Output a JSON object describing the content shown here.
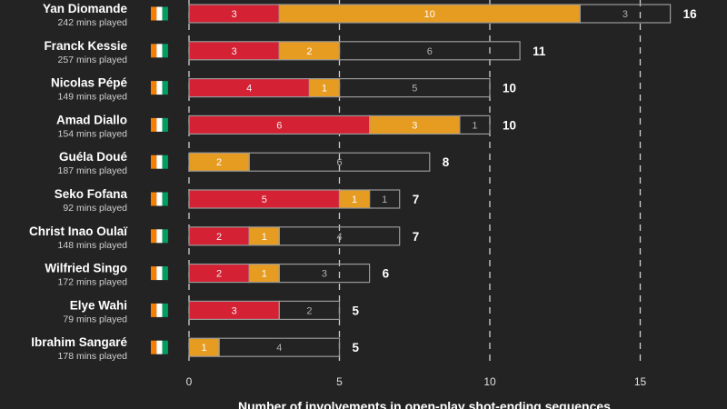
{
  "chart_data": {
    "type": "bar",
    "orientation": "horizontal",
    "stacked": true,
    "xlabel": "Number of involvements in open-play shot-ending sequences",
    "xlim": [
      0,
      16.5
    ],
    "xticks": [
      0,
      5,
      10,
      15
    ],
    "grid": "vertical dashed",
    "colors": {
      "red": "#d42133",
      "orange": "#e69b21",
      "outline": "#9a9a9a",
      "background": "#232323"
    },
    "players": [
      {
        "name": "Yan Diomande",
        "minutes": "242 mins played",
        "red": 3,
        "orange": 10,
        "outline": 3,
        "total": 16
      },
      {
        "name": "Franck Kessie",
        "minutes": "257 mins played",
        "red": 3,
        "orange": 2,
        "outline": 6,
        "total": 11
      },
      {
        "name": "Nicolas Pépé",
        "minutes": "149 mins played",
        "red": 4,
        "orange": 1,
        "outline": 5,
        "total": 10
      },
      {
        "name": "Amad Diallo",
        "minutes": "154 mins played",
        "red": 6,
        "orange": 3,
        "outline": 1,
        "total": 10
      },
      {
        "name": "Guéla Doué",
        "minutes": "187 mins played",
        "red": 0,
        "orange": 2,
        "outline": 6,
        "total": 8
      },
      {
        "name": "Seko Fofana",
        "minutes": "92 mins played",
        "red": 5,
        "orange": 1,
        "outline": 1,
        "total": 7
      },
      {
        "name": "Christ Inao Oulaï",
        "minutes": "148 mins played",
        "red": 2,
        "orange": 1,
        "outline": 4,
        "total": 7
      },
      {
        "name": "Wilfried Singo",
        "minutes": "172 mins played",
        "red": 2,
        "orange": 1,
        "outline": 3,
        "total": 6
      },
      {
        "name": "Elye Wahi",
        "minutes": "79 mins played",
        "red": 3,
        "orange": 0,
        "outline": 2,
        "total": 5
      },
      {
        "name": "Ibrahim Sangaré",
        "minutes": "178 mins played",
        "red": 0,
        "orange": 1,
        "outline": 4,
        "total": 5
      }
    ]
  }
}
